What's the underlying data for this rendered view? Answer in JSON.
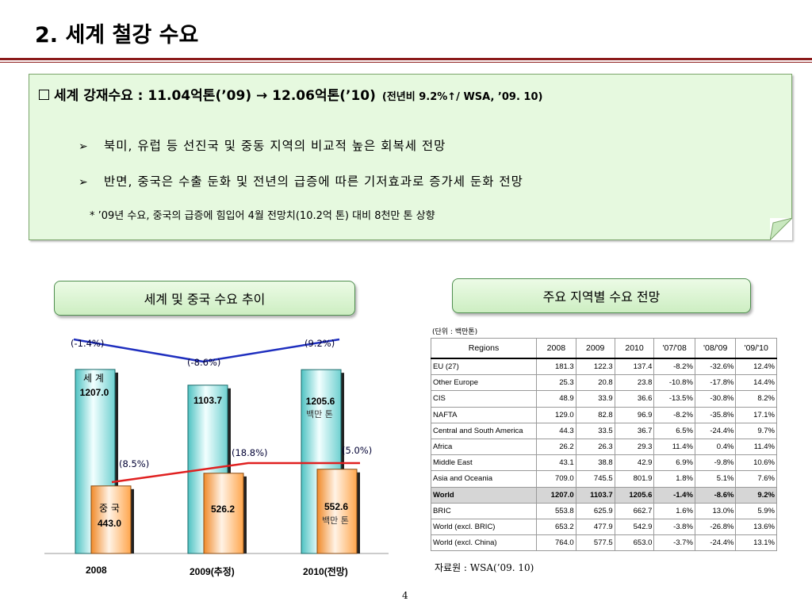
{
  "slide": {
    "title": "2. 세계 철강 수요",
    "page_number": "4"
  },
  "note": {
    "headline": "세계 강재수요 : 11.04억톤(’09) → 12.06억톤(’10)",
    "headline_source": "(전년비 9.2%↑/ WSA, ’09. 10)",
    "bullets": [
      "북미, 유럽 등 선진국 및 중동 지역의 비교적 높은 회복세 전망",
      "반면, 중국은 수출 둔화 및 전년의 급증에 따른 기저효과로 증가세 둔화 전망"
    ],
    "footnote": "* ’09년 수요, 중국의 급증에 힘입어 4월 전망치(10.2억 톤) 대비 8천만 톤 상향"
  },
  "pills": {
    "left": "세계 및 중국 수요 추이",
    "right": "주요 지역별  수요 전망"
  },
  "chart_data": {
    "type": "bar",
    "categories": [
      "2008",
      "2009(추정)",
      "2010(전망)"
    ],
    "series": [
      {
        "name": "세 계",
        "values": [
          1207.0,
          1103.7,
          1205.6
        ],
        "color": "#6fd0d0"
      },
      {
        "name": "중 국",
        "values": [
          443.0,
          526.2,
          552.6
        ],
        "color": "#ffa64d"
      }
    ],
    "value_labels": {
      "world": [
        "1207.0",
        "1103.7",
        "1205.6"
      ],
      "china": [
        "443.0",
        "526.2",
        "552.6"
      ]
    },
    "series_labels": {
      "world": "세 계",
      "china": "중 국"
    },
    "unit_label": "백만 톤",
    "world_growth": [
      "(-1.4%)",
      "(-8.6%)",
      "(9.2%)"
    ],
    "china_growth": [
      "(8.5%)",
      "(18.8%)",
      "(5.0%)"
    ],
    "line_colors": {
      "world": "#1f2fbf",
      "china": "#e02020"
    }
  },
  "table": {
    "unit": "(단위 : 백만톤)",
    "headers": [
      "Regions",
      "2008",
      "2009",
      "2010",
      "'07/'08",
      "'08/'09",
      "'09/'10"
    ],
    "rows": [
      [
        "EU (27)",
        "181.3",
        "122.3",
        "137.4",
        "-8.2%",
        "-32.6%",
        "12.4%"
      ],
      [
        "Other Europe",
        "25.3",
        "20.8",
        "23.8",
        "-10.8%",
        "-17.8%",
        "14.4%"
      ],
      [
        "CIS",
        "48.9",
        "33.9",
        "36.6",
        "-13.5%",
        "-30.8%",
        "8.2%"
      ],
      [
        "NAFTA",
        "129.0",
        "82.8",
        "96.9",
        "-8.2%",
        "-35.8%",
        "17.1%"
      ],
      [
        "Central and South America",
        "44.3",
        "33.5",
        "36.7",
        "6.5%",
        "-24.4%",
        "9.7%"
      ],
      [
        "Africa",
        "26.2",
        "26.3",
        "29.3",
        "11.4%",
        "0.4%",
        "11.4%"
      ],
      [
        "Middle East",
        "43.1",
        "38.8",
        "42.9",
        "6.9%",
        "-9.8%",
        "10.6%"
      ],
      [
        "Asia and Oceania",
        "709.0",
        "745.5",
        "801.9",
        "1.8%",
        "5.1%",
        "7.6%"
      ],
      [
        "World",
        "1207.0",
        "1103.7",
        "1205.6",
        "-1.4%",
        "-8.6%",
        "9.2%"
      ],
      [
        "BRIC",
        "553.8",
        "625.9",
        "662.7",
        "1.6%",
        "13.0%",
        "5.9%"
      ],
      [
        "World (excl. BRIC)",
        "653.2",
        "477.9",
        "542.9",
        "-3.8%",
        "-26.8%",
        "13.6%"
      ],
      [
        "World (excl. China)",
        "764.0",
        "577.5",
        "653.0",
        "-3.7%",
        "-24.4%",
        "13.1%"
      ]
    ],
    "highlight_row": 8,
    "source": "자료원 : WSA(’09. 10)"
  }
}
